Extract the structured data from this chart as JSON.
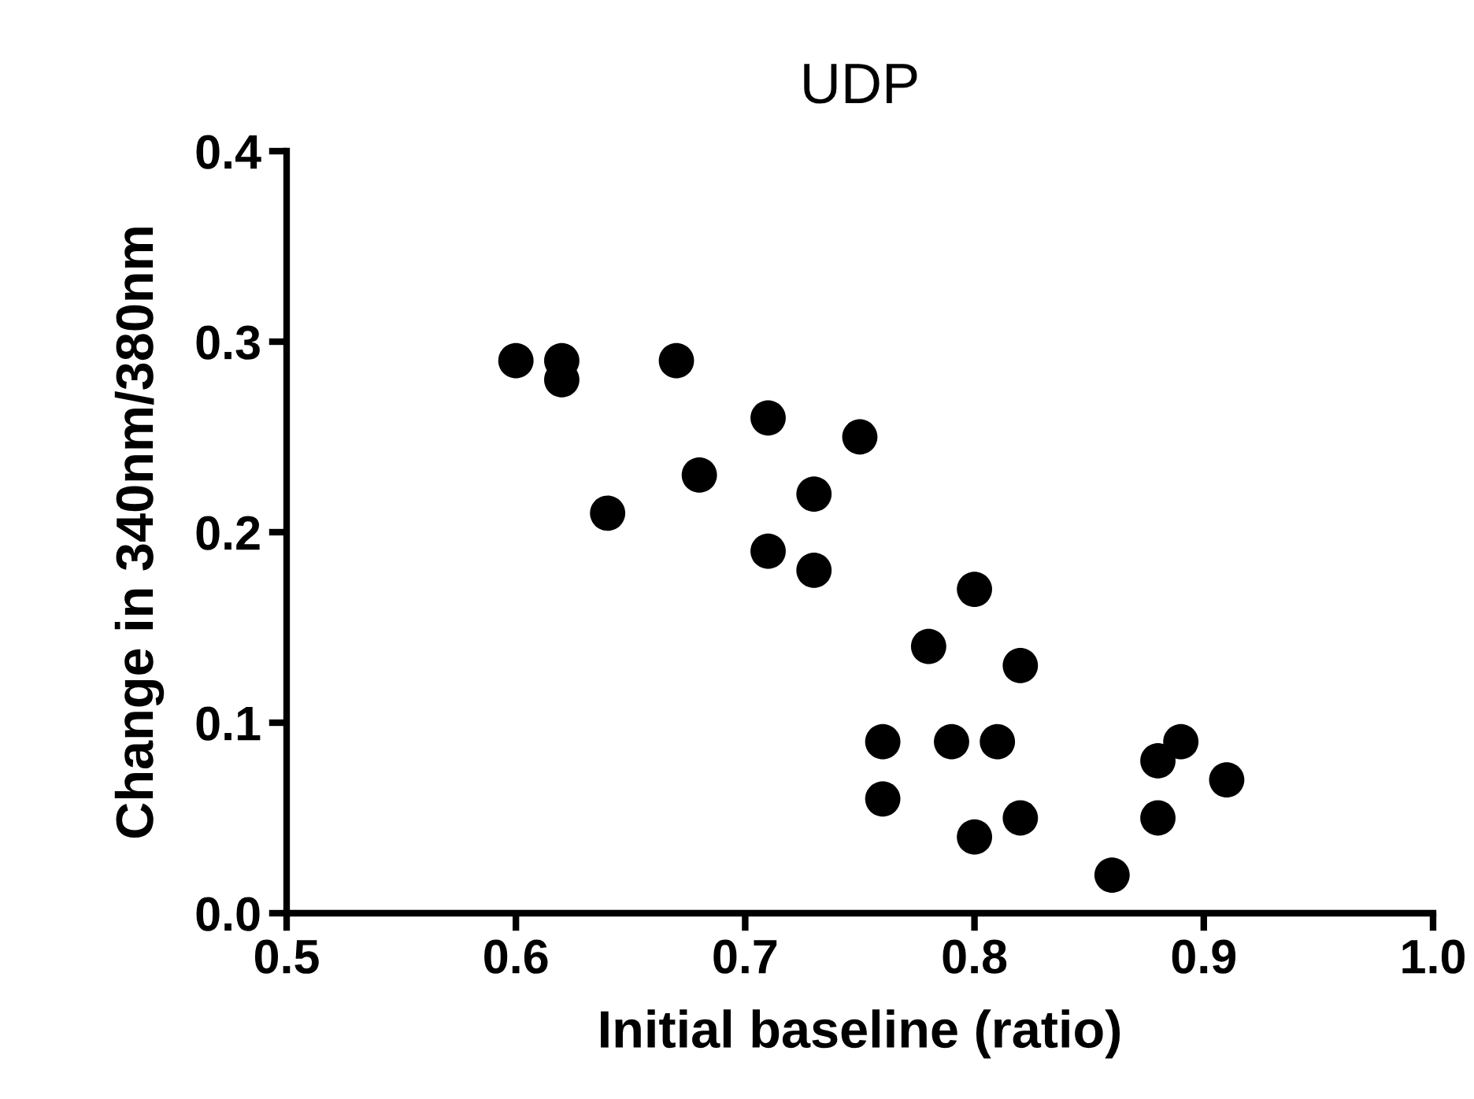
{
  "chart_data": {
    "type": "scatter",
    "title": "UDP",
    "xlabel": "Initial baseline (ratio)",
    "ylabel": "Change in 340nm/380nm",
    "x": [
      0.6,
      0.62,
      0.62,
      0.67,
      0.71,
      0.75,
      0.68,
      0.64,
      0.73,
      0.71,
      0.73,
      0.8,
      0.78,
      0.82,
      0.76,
      0.79,
      0.81,
      0.76,
      0.8,
      0.82,
      0.86,
      0.88,
      0.89,
      0.88,
      0.91
    ],
    "values": [
      0.29,
      0.29,
      0.28,
      0.29,
      0.26,
      0.25,
      0.23,
      0.21,
      0.22,
      0.19,
      0.18,
      0.17,
      0.14,
      0.13,
      0.09,
      0.09,
      0.09,
      0.06,
      0.04,
      0.05,
      0.02,
      0.08,
      0.09,
      0.05,
      0.07
    ],
    "color": "#000000",
    "marker": "circle",
    "xlim": [
      0.5,
      1.0
    ],
    "xticks": [
      {
        "value": 0.5,
        "label": "0.5"
      },
      {
        "value": 0.6,
        "label": "0.6"
      },
      {
        "value": 0.7,
        "label": "0.7"
      },
      {
        "value": 0.8,
        "label": "0.8"
      },
      {
        "value": 0.9,
        "label": "0.9"
      },
      {
        "value": 1.0,
        "label": "1.0"
      }
    ],
    "ylim": [
      0.0,
      0.4
    ],
    "yticks": [
      {
        "value": 0.0,
        "label": "0.0"
      },
      {
        "value": 0.1,
        "label": "0.1"
      },
      {
        "value": 0.2,
        "label": "0.2"
      },
      {
        "value": 0.3,
        "label": "0.3"
      },
      {
        "value": 0.4,
        "label": "0.4"
      }
    ],
    "grid": false,
    "legend": false
  }
}
